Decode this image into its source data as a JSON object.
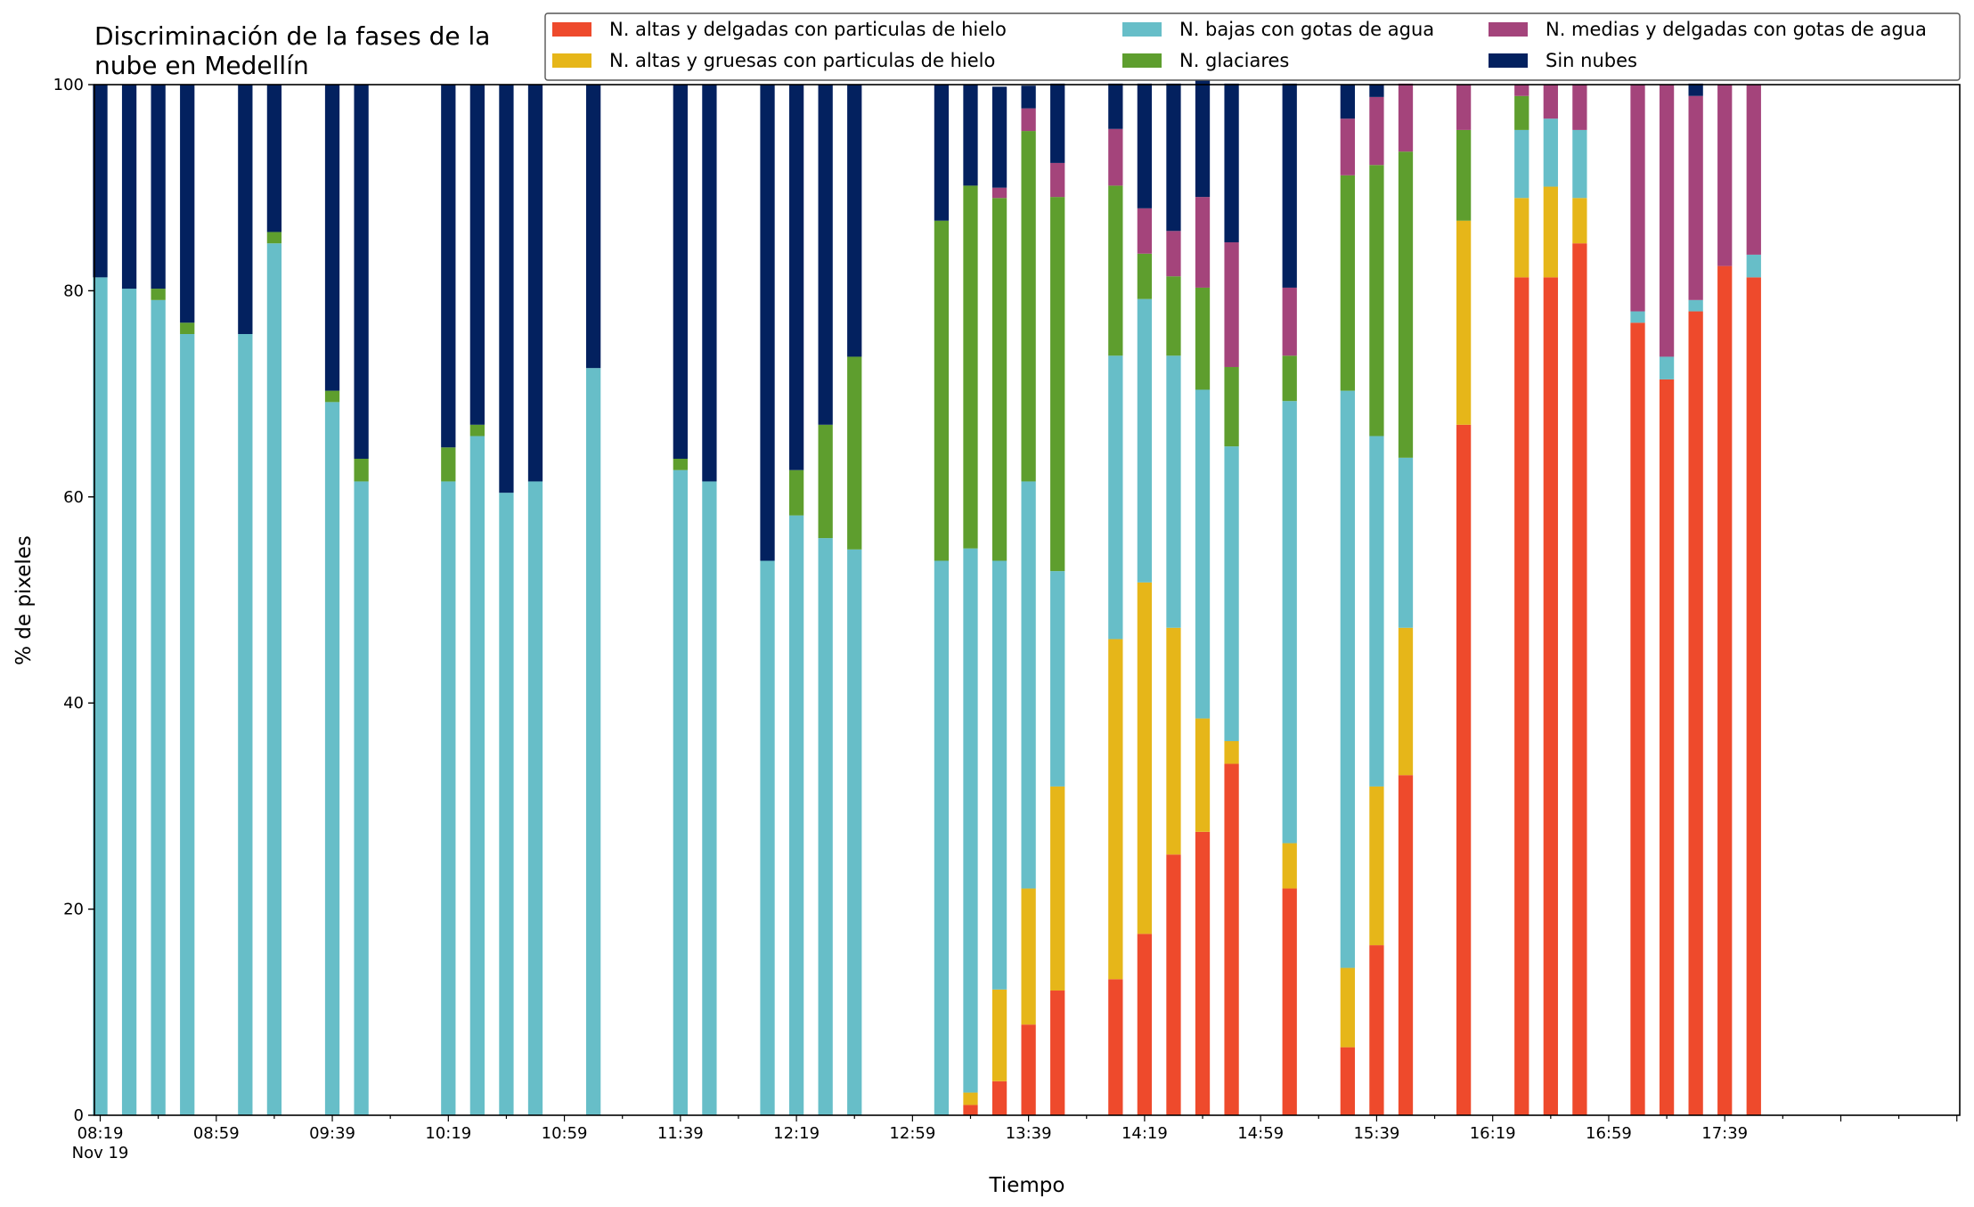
{
  "chart_data": {
    "type": "bar",
    "stacked": true,
    "title": "Discriminación de la fases de la nube en Medellín",
    "title_lines": [
      "Discriminación de la fases de la",
      "nube en Medellín"
    ],
    "xlabel": "Tiempo",
    "ylabel": "% de pixeles",
    "ylim": [
      0,
      100
    ],
    "yticks": [
      0,
      20,
      40,
      60,
      80,
      100
    ],
    "x_tick_labels": [
      "08:19",
      "08:59",
      "09:39",
      "10:19",
      "10:59",
      "11:39",
      "12:19",
      "12:59",
      "13:39",
      "14:19",
      "14:59",
      "15:39",
      "16:19",
      "16:59",
      "17:39"
    ],
    "x_date_label": "Nov 19",
    "x_range_minutes": [
      "08:17",
      "19:00"
    ],
    "bar_width_minutes": 5,
    "grid": false,
    "legend_position": "top-right",
    "times": [
      "08:19",
      "08:29",
      "08:39",
      "08:49",
      "09:09",
      "09:19",
      "09:39",
      "09:49",
      "10:19",
      "10:29",
      "10:39",
      "10:49",
      "11:09",
      "11:39",
      "11:49",
      "12:09",
      "12:19",
      "12:29",
      "12:39",
      "13:09",
      "13:19",
      "13:29",
      "13:39",
      "13:49",
      "14:09",
      "14:19",
      "14:29",
      "14:39",
      "14:49",
      "15:09",
      "15:29",
      "15:39",
      "15:49",
      "16:09",
      "16:29",
      "16:39",
      "16:49",
      "17:09",
      "17:19",
      "17:29",
      "17:39",
      "17:49"
    ],
    "series": [
      {
        "name": "N. altas y delgadas con particulas de hielo",
        "color": "#ee4a2c",
        "values": [
          0,
          0,
          0,
          0,
          0,
          0,
          0,
          0,
          0,
          0,
          0,
          0,
          0,
          0,
          0,
          0,
          0,
          0,
          0,
          0,
          1.0,
          3.3,
          8.8,
          12.1,
          13.2,
          17.6,
          25.3,
          27.5,
          34.1,
          22.0,
          6.6,
          16.5,
          33.0,
          67.0,
          81.3,
          81.3,
          84.6,
          76.9,
          71.4,
          78.0,
          82.4,
          81.3
        ]
      },
      {
        "name": "N. altas y gruesas con particulas de hielo",
        "color": "#e6b619",
        "values": [
          0,
          0,
          0,
          0,
          0,
          0,
          0,
          0,
          0,
          0,
          0,
          0,
          0,
          0,
          0,
          0,
          0,
          0,
          0,
          0,
          1.2,
          8.9,
          13.2,
          19.8,
          33.0,
          34.1,
          22.0,
          11.0,
          2.2,
          4.4,
          7.7,
          15.4,
          14.3,
          19.8,
          7.7,
          8.8,
          4.4,
          0,
          0,
          0,
          0,
          0
        ]
      },
      {
        "name": "N. bajas con gotas de agua",
        "color": "#67bec8",
        "values": [
          81.3,
          80.2,
          79.1,
          75.8,
          75.8,
          84.6,
          69.2,
          61.5,
          61.5,
          65.9,
          60.4,
          61.5,
          72.5,
          62.6,
          61.5,
          53.8,
          58.2,
          56.0,
          54.9,
          53.8,
          52.8,
          41.6,
          39.5,
          20.9,
          27.5,
          27.5,
          26.4,
          31.9,
          28.6,
          42.9,
          56.0,
          34.0,
          16.5,
          0,
          6.6,
          6.6,
          6.6,
          1.1,
          2.2,
          1.1,
          0,
          2.2
        ]
      },
      {
        "name": "N. glaciares",
        "color": "#5e9e2e",
        "values": [
          0,
          0,
          1.1,
          1.1,
          0,
          1.1,
          1.1,
          2.2,
          3.3,
          1.1,
          0,
          0,
          0,
          1.1,
          0,
          0,
          4.4,
          11.0,
          18.7,
          33.0,
          35.2,
          35.2,
          34.0,
          36.3,
          16.5,
          4.4,
          7.7,
          9.9,
          7.7,
          4.4,
          20.9,
          26.3,
          29.7,
          8.8,
          3.3,
          0,
          0,
          0,
          0,
          0,
          0,
          0
        ]
      },
      {
        "name": "N. medias y delgadas con gotas de agua",
        "color": "#a4447b",
        "values": [
          0,
          0,
          0,
          0,
          0,
          0,
          0,
          0,
          0,
          0,
          0,
          0,
          0,
          0,
          0,
          0,
          0,
          0,
          0,
          0,
          0,
          1.0,
          2.2,
          3.3,
          5.5,
          4.4,
          4.4,
          8.8,
          12.1,
          6.6,
          5.5,
          6.6,
          6.6,
          4.4,
          1.1,
          3.3,
          4.4,
          22.0,
          26.4,
          19.8,
          17.6,
          16.5
        ]
      },
      {
        "name": "Sin nubes",
        "color": "#03215f",
        "values": [
          18.7,
          19.8,
          19.8,
          23.1,
          24.2,
          14.3,
          29.7,
          36.3,
          35.2,
          33.0,
          39.6,
          38.5,
          27.5,
          36.3,
          38.5,
          46.2,
          37.4,
          33.0,
          26.4,
          13.2,
          9.8,
          9.8,
          2.2,
          7.7,
          4.4,
          12.1,
          14.3,
          13.2,
          15.4,
          19.8,
          3.3,
          1.2,
          0,
          0,
          0,
          0,
          0,
          0,
          0,
          1.2,
          0,
          0
        ]
      }
    ]
  }
}
